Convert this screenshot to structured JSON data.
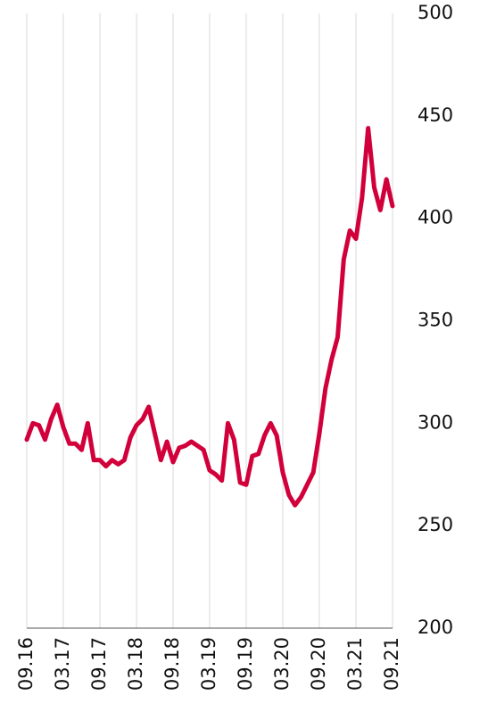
{
  "chart_data": {
    "type": "line",
    "categories": [
      "09.16",
      null,
      null,
      null,
      null,
      null,
      "03.17",
      null,
      null,
      null,
      null,
      null,
      "09.17",
      null,
      null,
      null,
      null,
      null,
      "03.18",
      null,
      null,
      null,
      null,
      null,
      "09.18",
      null,
      null,
      null,
      null,
      null,
      "03.19",
      null,
      null,
      null,
      null,
      null,
      "09.19",
      null,
      null,
      null,
      null,
      null,
      "03.20",
      null,
      null,
      null,
      null,
      null,
      "09.20",
      null,
      null,
      null,
      null,
      null,
      "03.21",
      null,
      null,
      null,
      null,
      null,
      "09.21"
    ],
    "series": [
      {
        "color": "#d2003a",
        "values": [
          292,
          300,
          299,
          292,
          302,
          309,
          298,
          290,
          290,
          287,
          300,
          282,
          282,
          279,
          282,
          280,
          282,
          293,
          299,
          302,
          308,
          295,
          282,
          291,
          281,
          288,
          289,
          291,
          289,
          287,
          277,
          275,
          272,
          300,
          292,
          271,
          270,
          284,
          285,
          294,
          300,
          294,
          276,
          265,
          260,
          264,
          270,
          276,
          295,
          317,
          331,
          342,
          380,
          394,
          390,
          410,
          444,
          415,
          404,
          419,
          406
        ]
      }
    ],
    "ylim": [
      200,
      500
    ],
    "yticks": [
      200,
      250,
      300,
      350,
      400,
      450,
      500
    ],
    "grid": true
  }
}
